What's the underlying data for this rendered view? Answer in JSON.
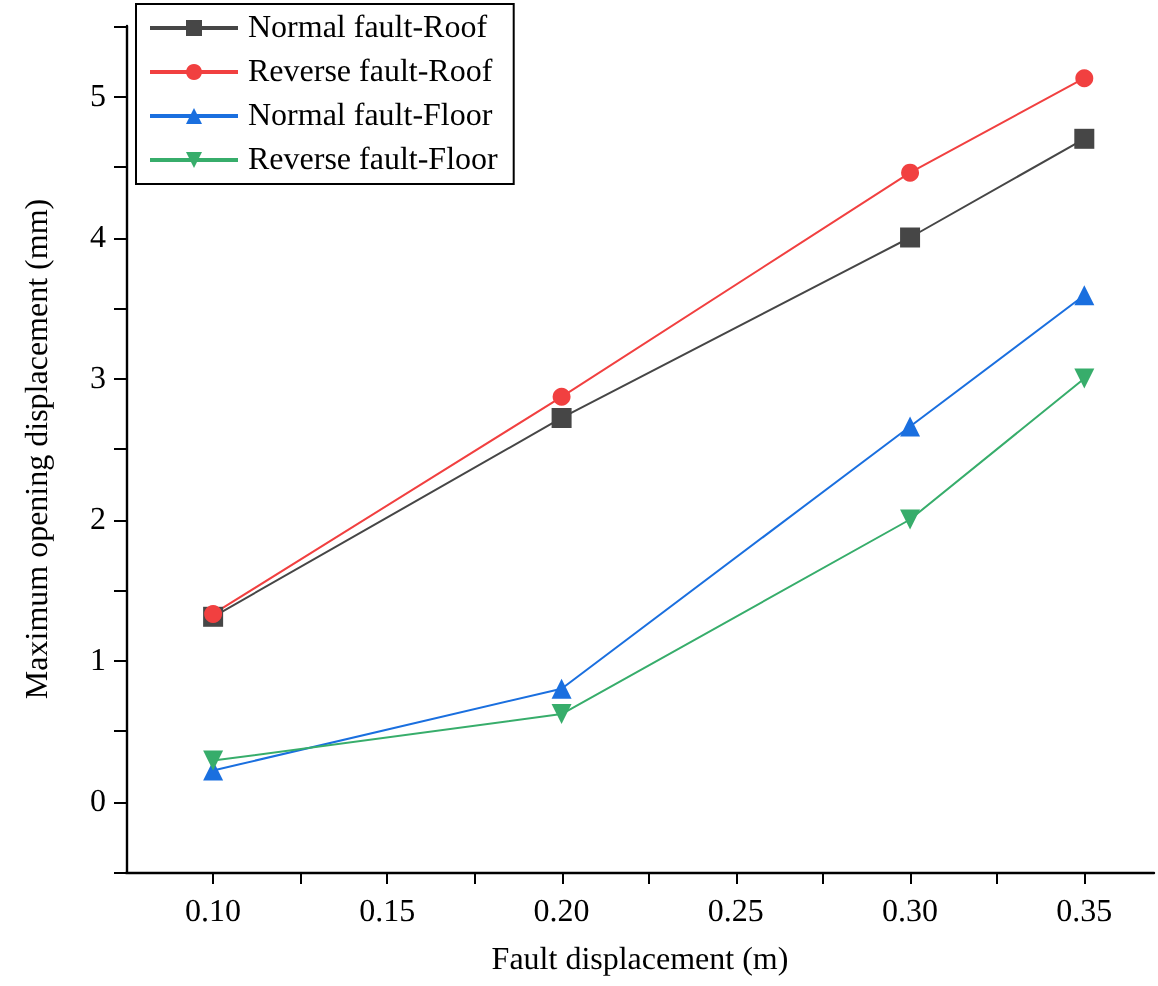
{
  "chart_data": {
    "type": "line",
    "xlabel": "Fault displacement (m)",
    "ylabel": "Maximum opening displacement (mm)",
    "x": [
      0.1,
      0.2,
      0.3,
      0.35
    ],
    "series": [
      {
        "name": "Normal fault-Roof",
        "color": "#464646",
        "marker": "square",
        "values": [
          1.31,
          2.72,
          4.0,
          4.7
        ]
      },
      {
        "name": "Reverse fault-Roof",
        "color": "#f14040",
        "marker": "circle",
        "values": [
          1.33,
          2.87,
          4.46,
          5.13
        ]
      },
      {
        "name": "Normal fault-Floor",
        "color": "#1a6fdf",
        "marker": "triangle",
        "values": [
          0.22,
          0.8,
          2.66,
          3.59
        ]
      },
      {
        "name": "Reverse fault-Floor",
        "color": "#37ad6b",
        "marker": "triangle-down",
        "values": [
          0.29,
          0.62,
          2.0,
          3.0
        ]
      }
    ],
    "xlim": [
      0.075,
      0.37
    ],
    "xticks": [
      {
        "value": 0.1,
        "label": "0.10"
      },
      {
        "value": 0.125,
        "label": null
      },
      {
        "value": 0.15,
        "label": "0.15"
      },
      {
        "value": 0.175,
        "label": null
      },
      {
        "value": 0.2,
        "label": "0.20"
      },
      {
        "value": 0.225,
        "label": null
      },
      {
        "value": 0.25,
        "label": "0.25"
      },
      {
        "value": 0.275,
        "label": null
      },
      {
        "value": 0.3,
        "label": "0.30"
      },
      {
        "value": 0.325,
        "label": null
      },
      {
        "value": 0.35,
        "label": "0.35"
      }
    ],
    "ylim": [
      -0.5,
      5.5
    ],
    "yticks": [
      {
        "value": -0.5,
        "label": null
      },
      0,
      {
        "value": 0.5,
        "label": null
      },
      1,
      {
        "value": 1.5,
        "label": null
      },
      2,
      {
        "value": 2.5,
        "label": null
      },
      3,
      {
        "value": 3.5,
        "label": null
      },
      4,
      {
        "value": 4.5,
        "label": null
      },
      5,
      {
        "value": 5.5,
        "label": null
      }
    ],
    "legend": "top left",
    "grid": false,
    "line_style": "solid"
  }
}
